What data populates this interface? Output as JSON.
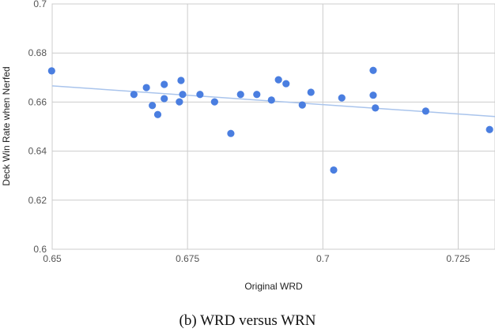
{
  "caption": "(b) WRD versus WRN",
  "chart_data": {
    "type": "scatter",
    "title": "",
    "xlabel": "Original WRD",
    "ylabel": "Deck Win Rate when Nerfed",
    "xlim": [
      0.65,
      0.7318
    ],
    "ylim": [
      0.6,
      0.7
    ],
    "x_ticks": [
      0.65,
      0.675,
      0.7,
      0.725
    ],
    "x_tick_labels": [
      "0.65",
      "0.675",
      "0.7",
      "0.725"
    ],
    "y_ticks": [
      0.6,
      0.62,
      0.64,
      0.66,
      0.68,
      0.7
    ],
    "y_tick_labels": [
      "0.6",
      "0.62",
      "0.64",
      "0.66",
      "0.68",
      "0.7"
    ],
    "grid": true,
    "point_color": "#4a7ee0",
    "trendline_color": "#a9c4ec",
    "series": [
      {
        "points": [
          [
            0.6499,
            0.6727
          ],
          [
            0.6651,
            0.6631
          ],
          [
            0.6674,
            0.6659
          ],
          [
            0.6685,
            0.6586
          ],
          [
            0.6695,
            0.6549
          ],
          [
            0.6707,
            0.6672
          ],
          [
            0.6707,
            0.6614
          ],
          [
            0.6735,
            0.6601
          ],
          [
            0.6738,
            0.6688
          ],
          [
            0.6741,
            0.6631
          ],
          [
            0.6773,
            0.6631
          ],
          [
            0.68,
            0.6601
          ],
          [
            0.683,
            0.6472
          ],
          [
            0.6848,
            0.6631
          ],
          [
            0.6878,
            0.6631
          ],
          [
            0.6905,
            0.6608
          ],
          [
            0.6918,
            0.6691
          ],
          [
            0.6932,
            0.6675
          ],
          [
            0.6962,
            0.6588
          ],
          [
            0.6978,
            0.664
          ],
          [
            0.702,
            0.6323
          ],
          [
            0.7035,
            0.6617
          ],
          [
            0.7093,
            0.6628
          ],
          [
            0.7093,
            0.6729
          ],
          [
            0.7097,
            0.6576
          ],
          [
            0.719,
            0.6563
          ],
          [
            0.7308,
            0.6488
          ]
        ],
        "trendline": [
          [
            0.65,
            0.6666
          ],
          [
            0.7318,
            0.6541
          ]
        ]
      }
    ]
  }
}
